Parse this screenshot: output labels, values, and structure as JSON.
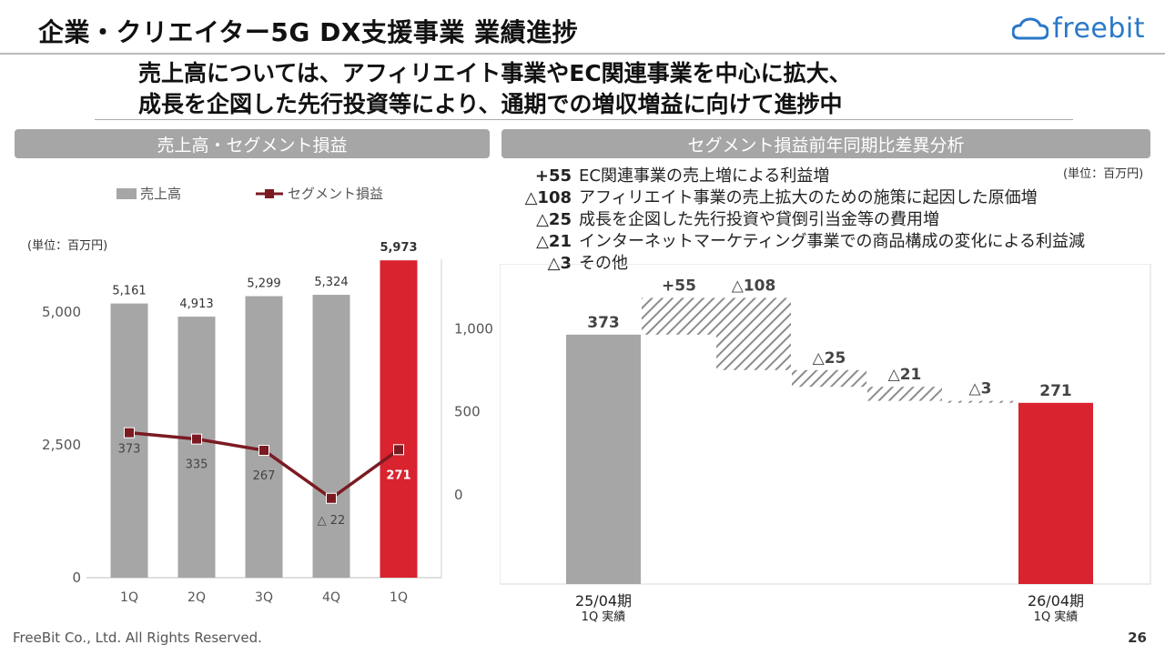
{
  "header": {
    "title": "企業・クリエイター5G DX支援事業 業績進捗",
    "logo_text": "freebit"
  },
  "headline": {
    "line1": "売上高については、アフィリエイト事業やEC関連事業を中心に拡大、",
    "line2": "成長を企図した先行投資等により、通期での増収増益に向けて進捗中"
  },
  "left_panel": {
    "heading": "売上高・セグメント損益",
    "unit": "(単位：百万円)",
    "legend_sales": "売上高",
    "legend_profit": "セグメント損益"
  },
  "right_panel": {
    "heading": "セグメント損益前年同期比差異分析",
    "unit": "(単位：百万円)",
    "explanations": [
      {
        "value": "+55",
        "text": "EC関連事業の売上増による利益増"
      },
      {
        "value": "△108",
        "text": "アフィリエイト事業の売上拡大のための施策に起因した原価増"
      },
      {
        "value": "△25",
        "text": "成長を企図した先行投資や貸倒引当金等の費用増"
      },
      {
        "value": "△21",
        "text": "インターネットマーケティング事業での商品構成の変化による利益減"
      },
      {
        "value": "△3",
        "text": "その他"
      }
    ],
    "start_label": "25/04期",
    "start_sublabel": "1Q 実績",
    "end_label": "26/04期",
    "end_sublabel": "1Q 実績"
  },
  "footer": {
    "copyright": "FreeBit Co., Ltd. All Rights Reserved.",
    "page": "26"
  },
  "colors": {
    "bar_gray": "#a6a6a6",
    "highlight_red": "#d9232e",
    "line_dark_red": "#7b1a22",
    "hatch": "#8c8c8c"
  },
  "chart_data": [
    {
      "type": "bar",
      "categories": [
        "1Q",
        "2Q",
        "3Q",
        "4Q",
        "1Q"
      ],
      "series": [
        {
          "name": "売上高",
          "values": [
            5161,
            4913,
            5299,
            5324,
            5973
          ],
          "labels": [
            "5,161",
            "4,913",
            "5,299",
            "5,324",
            "5,973"
          ],
          "axis": "left"
        },
        {
          "name": "セグメント損益",
          "type": "line",
          "values": [
            373,
            335,
            267,
            -22,
            271
          ],
          "labels": [
            "373",
            "335",
            "267",
            "△ 22",
            "271"
          ],
          "axis": "right"
        }
      ],
      "ylim_left": [
        0,
        6250
      ],
      "yticks_left": [
        "0",
        "2,500",
        "5,000"
      ],
      "ylim_right": [
        -500,
        1500
      ],
      "yticks_right": [
        "0",
        "500",
        "1,000"
      ],
      "highlight_last": true
    },
    {
      "type": "waterfall",
      "steps": [
        {
          "label": "373",
          "value": 373,
          "kind": "total"
        },
        {
          "label": "+55",
          "value": 55,
          "kind": "delta"
        },
        {
          "label": "△108",
          "value": -108,
          "kind": "delta"
        },
        {
          "label": "△25",
          "value": -25,
          "kind": "delta"
        },
        {
          "label": "△21",
          "value": -21,
          "kind": "delta"
        },
        {
          "label": "△3",
          "value": -3,
          "kind": "delta"
        },
        {
          "label": "271",
          "value": 271,
          "kind": "total"
        }
      ]
    }
  ]
}
